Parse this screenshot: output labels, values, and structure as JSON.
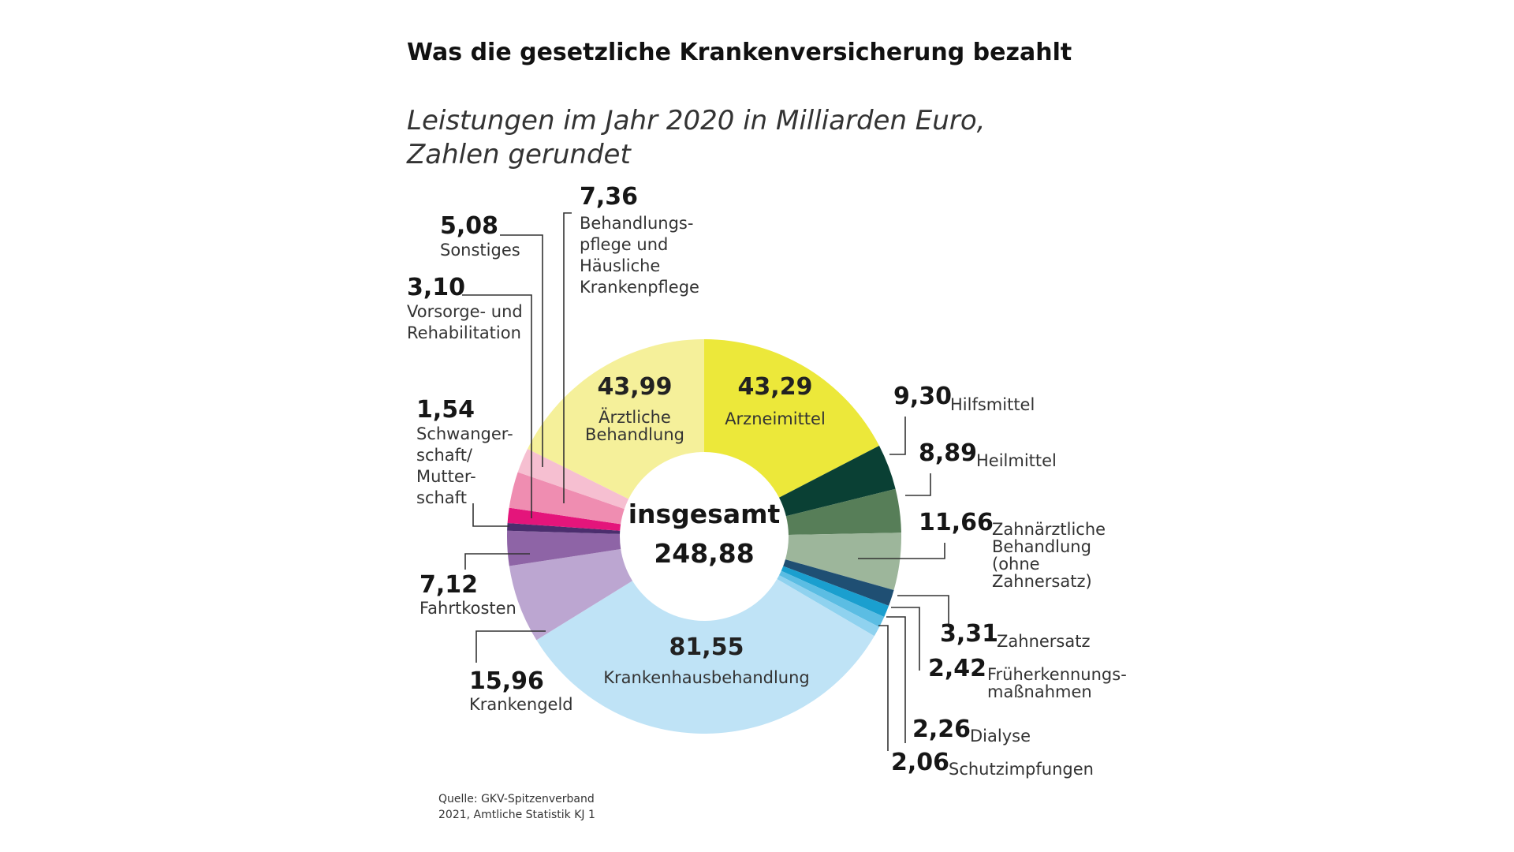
{
  "chart_data": {
    "type": "pie",
    "title": "Was die gesetzliche Krankenversicherung bezahlt",
    "subtitle": [
      "Leistungen im Jahr 2020 in Milliarden Euro,",
      "Zahlen gerundet"
    ],
    "center": {
      "label": "insgesamt",
      "value": "248,88"
    },
    "source": [
      "Quelle: GKV-Spitzenverband",
      "2021, Amtliche Statistik KJ 1"
    ],
    "slices": [
      {
        "value": 43.29,
        "display": "43,29",
        "label": [
          "Arzneimittel"
        ],
        "color": "#ece83a"
      },
      {
        "value": 9.3,
        "display": "9,30",
        "label": [
          "Hilfsmittel"
        ],
        "color": "#0a4034"
      },
      {
        "value": 8.89,
        "display": "8,89",
        "label": [
          "Heilmittel"
        ],
        "color": "#577e58"
      },
      {
        "value": 11.66,
        "display": "11,66",
        "label": [
          "Zahnärztliche",
          "Behandlung",
          "(ohne",
          "Zahnersatz)"
        ],
        "color": "#9db69b"
      },
      {
        "value": 3.31,
        "display": "3,31",
        "label": [
          "Zahnersatz"
        ],
        "color": "#1f4f73"
      },
      {
        "value": 2.42,
        "display": "2,42",
        "label": [
          "Früherkennungs-",
          "maßnahmen"
        ],
        "color": "#1a9fcf"
      },
      {
        "value": 2.26,
        "display": "2,26",
        "label": [
          "Dialyse"
        ],
        "color": "#5bbde3"
      },
      {
        "value": 2.06,
        "display": "2,06",
        "label": [
          "Schutzimpfungen"
        ],
        "color": "#8fd2ef"
      },
      {
        "value": 81.55,
        "display": "81,55",
        "label": [
          "Krankenhausbehandlung"
        ],
        "color": "#bfe3f6"
      },
      {
        "value": 15.96,
        "display": "15,96",
        "label": [
          "Krankengeld"
        ],
        "color": "#bca6d1"
      },
      {
        "value": 7.12,
        "display": "7,12",
        "label": [
          "Fahrtkosten"
        ],
        "color": "#8e64a6"
      },
      {
        "value": 1.54,
        "display": "1,54",
        "label": [
          "Schwanger-",
          "schaft/",
          "Mutter-",
          "schaft"
        ],
        "color": "#4b2e6e"
      },
      {
        "value": 3.1,
        "display": "3,10",
        "label": [
          "Vorsorge- und",
          "Rehabilitation"
        ],
        "color": "#e4157b"
      },
      {
        "value": 7.36,
        "display": "7,36",
        "label": [
          "Behandlungs-",
          "pflege und",
          "Häusliche",
          "Krankenpflege"
        ],
        "color": "#ef8db1"
      },
      {
        "value": 5.08,
        "display": "5,08",
        "label": [
          "Sonstiges"
        ],
        "color": "#f6bfd1"
      },
      {
        "value": 43.99,
        "display": "43,99",
        "label": [
          "Ärztliche",
          "Behandlung"
        ],
        "color": "#f5f09a"
      }
    ]
  }
}
